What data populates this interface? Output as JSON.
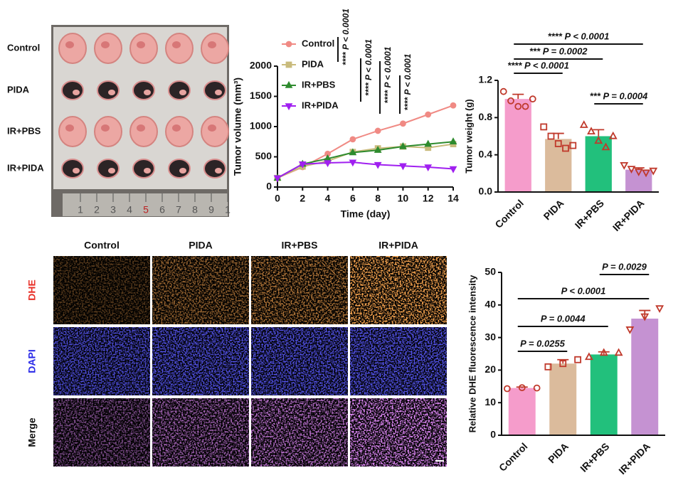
{
  "photo_panel": {
    "row_labels": [
      "Control",
      "PIDA",
      "IR+PBS",
      "IR+PIDA"
    ],
    "ruler_labels": [
      "1",
      "2",
      "3",
      "4",
      "5",
      "6",
      "7",
      "8",
      "9",
      "1"
    ]
  },
  "chart_data": [
    {
      "type": "line",
      "x_label": "Time (day)",
      "y_label": "Tumor volume (mm³)",
      "x": [
        0,
        2,
        4,
        6,
        8,
        10,
        12,
        14
      ],
      "xlim": [
        0,
        14
      ],
      "xticks": [
        0,
        2,
        4,
        6,
        8,
        10,
        12,
        14
      ],
      "ylim": [
        0,
        2000
      ],
      "yticks": [
        0,
        500,
        1000,
        1500,
        2000
      ],
      "series": [
        {
          "name": "Control",
          "color": "#f08a84",
          "values": [
            150,
            330,
            550,
            790,
            930,
            1050,
            1200,
            1350
          ],
          "errors": [
            10,
            20,
            40,
            40,
            40,
            50,
            40,
            50
          ]
        },
        {
          "name": "PIDA",
          "color": "#c9bb7c",
          "values": [
            150,
            340,
            430,
            580,
            640,
            670,
            650,
            710
          ],
          "errors": [
            10,
            20,
            30,
            30,
            30,
            30,
            30,
            30
          ]
        },
        {
          "name": "IR+PBS",
          "color": "#2e8b2e",
          "values": [
            150,
            380,
            470,
            570,
            610,
            670,
            710,
            750
          ],
          "errors": [
            10,
            20,
            20,
            20,
            20,
            20,
            20,
            20
          ]
        },
        {
          "name": "IR+PIDA",
          "color": "#a020f0",
          "values": [
            150,
            380,
            400,
            410,
            370,
            350,
            330,
            300
          ],
          "errors": [
            10,
            20,
            30,
            20,
            40,
            40,
            20,
            15
          ]
        }
      ],
      "annotations": [
        "**** P < 0.0001",
        "**** P < 0.0001",
        "**** P < 0.0001",
        "**** P < 0.0001"
      ]
    },
    {
      "type": "bar",
      "y_label": "Tumor weight (g)",
      "categories": [
        "Control",
        "PIDA",
        "IR+PBS",
        "IR+PIDA"
      ],
      "colors": [
        "#f59ccb",
        "#dbbb9c",
        "#22c07c",
        "#c592d2"
      ],
      "point_color": "#c0392b",
      "values": [
        1.0,
        0.57,
        0.6,
        0.24
      ],
      "errors": [
        0.05,
        0.06,
        0.07,
        0.02
      ],
      "points": [
        [
          1.08,
          0.98,
          0.92,
          0.92,
          1.0
        ],
        [
          0.7,
          0.6,
          0.52,
          0.47,
          0.5
        ],
        [
          0.72,
          0.65,
          0.55,
          0.48,
          0.6
        ],
        [
          0.29,
          0.25,
          0.22,
          0.21,
          0.23
        ]
      ],
      "ylim": [
        0,
        1.2
      ],
      "yticks": [
        {
          "value": 0,
          "label": "0.0"
        },
        0.4,
        0.8,
        1.2
      ],
      "annotations": [
        "**** P < 0.0001",
        "*** P = 0.0002",
        "**** P < 0.0001",
        "*** P = 0.0004"
      ]
    },
    {
      "type": "bar",
      "y_label": "Relative DHE fluorescence intensity",
      "categories": [
        "Control",
        "PIDA",
        "IR+PBS",
        "IR+PIDA"
      ],
      "colors": [
        "#f59ccb",
        "#dbbb9c",
        "#22c07c",
        "#c592d2"
      ],
      "point_color": "#c0392b",
      "values": [
        14.5,
        22,
        24.8,
        35.8
      ],
      "errors": [
        0.3,
        1.2,
        0.8,
        2.5
      ],
      "points": [
        [
          14.3,
          14.6,
          14.5
        ],
        [
          21,
          22,
          23.2
        ],
        [
          24,
          25.3,
          25.3
        ],
        [
          32.5,
          36.5,
          39
        ]
      ],
      "ylim": [
        0,
        50
      ],
      "yticks": [
        0,
        10,
        20,
        30,
        40,
        50
      ],
      "annotations": [
        "P = 0.0255",
        "P = 0.0044",
        "P < 0.0001",
        "P = 0.0029"
      ]
    }
  ],
  "fluorescence_panel": {
    "column_labels": [
      "Control",
      "PIDA",
      "IR+PBS",
      "IR+PIDA"
    ],
    "row_labels": [
      "DHE",
      "DAPI",
      "Merge"
    ],
    "row_label_colors": [
      "#e8322a",
      "#2a2ae8",
      "#111111"
    ]
  }
}
